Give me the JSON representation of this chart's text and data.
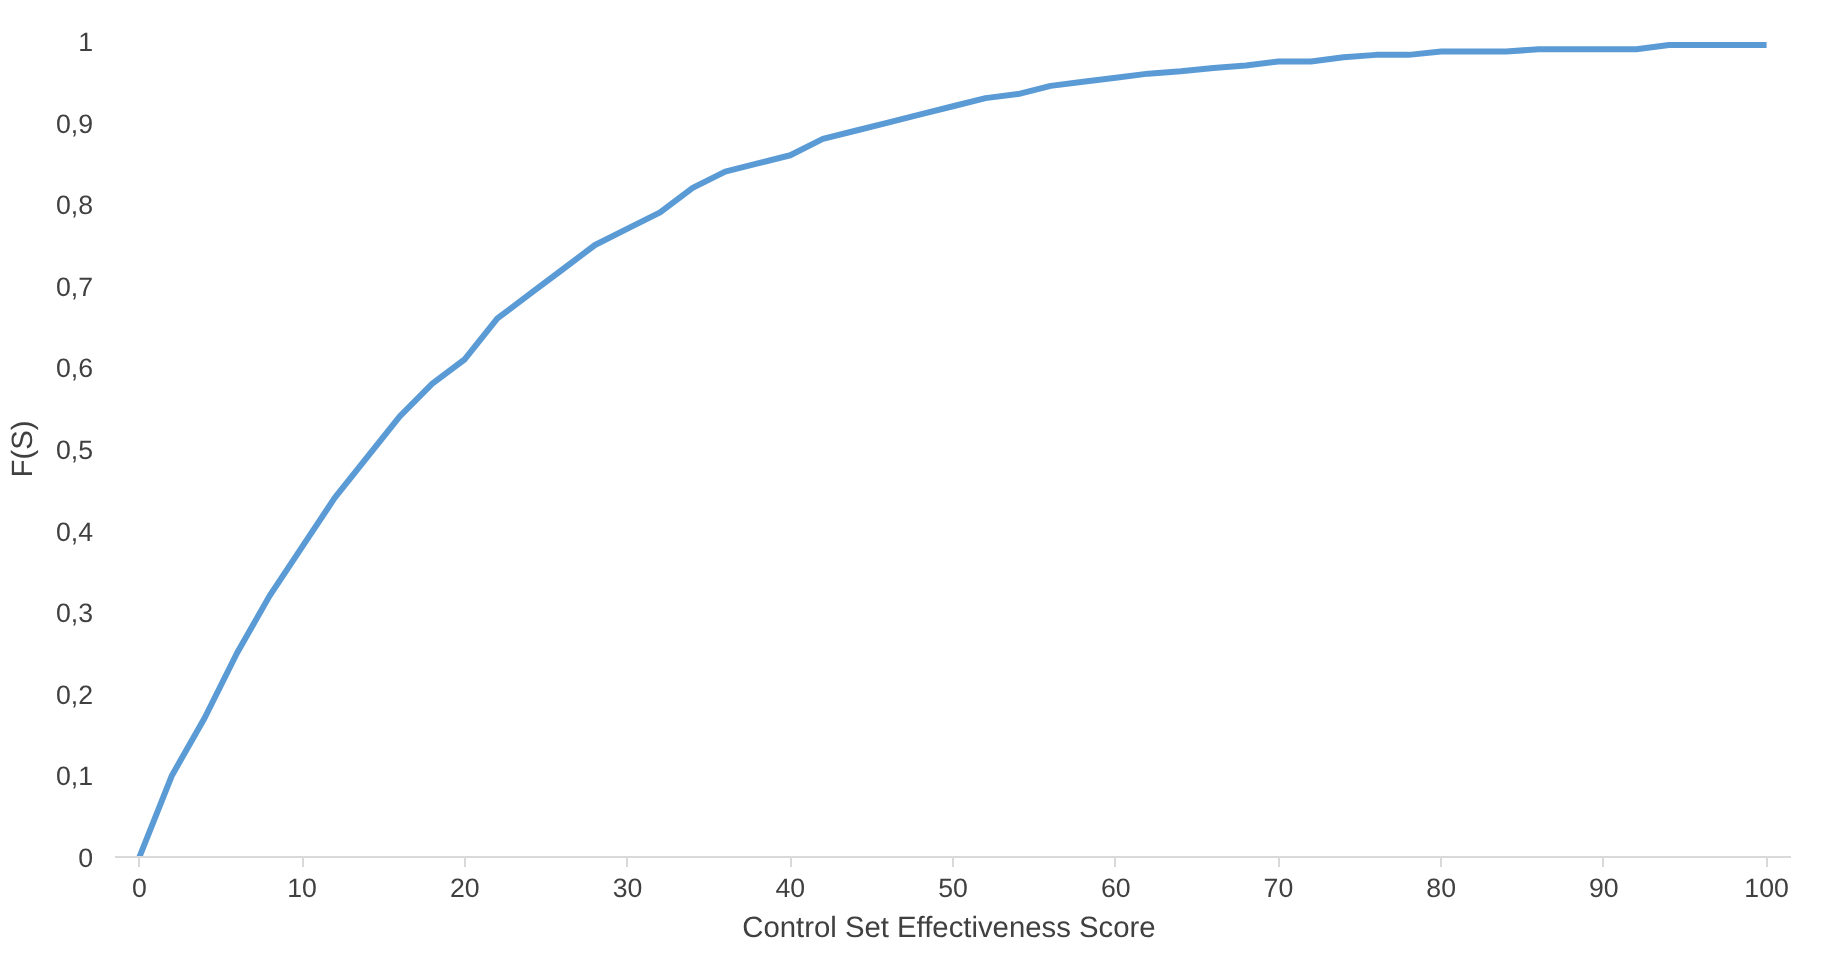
{
  "chart_data": {
    "type": "line",
    "xlabel": "Control  Set Effectiveness Score",
    "ylabel": "F(S)",
    "x": [
      0,
      2,
      4,
      6,
      8,
      10,
      12,
      14,
      16,
      18,
      20,
      22,
      24,
      26,
      28,
      30,
      32,
      34,
      36,
      38,
      40,
      42,
      44,
      46,
      48,
      50,
      52,
      54,
      56,
      58,
      60,
      62,
      64,
      66,
      68,
      70,
      72,
      74,
      76,
      78,
      80,
      82,
      84,
      86,
      88,
      90,
      92,
      94,
      96,
      98,
      100
    ],
    "series": [
      {
        "color": "#5b9bd5",
        "values": [
          0,
          0.1,
          0.17,
          0.25,
          0.32,
          0.38,
          0.44,
          0.49,
          0.54,
          0.58,
          0.61,
          0.66,
          0.69,
          0.72,
          0.75,
          0.77,
          0.79,
          0.82,
          0.84,
          0.85,
          0.86,
          0.88,
          0.89,
          0.9,
          0.91,
          0.92,
          0.93,
          0.935,
          0.945,
          0.95,
          0.955,
          0.96,
          0.963,
          0.967,
          0.97,
          0.975,
          0.975,
          0.98,
          0.983,
          0.983,
          0.987,
          0.987,
          0.987,
          0.99,
          0.99,
          0.99,
          0.99,
          0.995,
          0.995,
          0.995,
          0.995
        ]
      }
    ],
    "xlim": [
      -1.5,
      101.5
    ],
    "ylim": [
      0,
      1
    ],
    "xticks": [
      0,
      10,
      20,
      30,
      40,
      50,
      60,
      70,
      80,
      90,
      100
    ],
    "yticks": [
      0,
      {
        "value": 0.1,
        "label": "0,1"
      },
      {
        "value": 0.2,
        "label": "0,2"
      },
      {
        "value": 0.3,
        "label": "0,3"
      },
      {
        "value": 0.4,
        "label": "0,4"
      },
      {
        "value": 0.5,
        "label": "0,5"
      },
      {
        "value": 0.6,
        "label": "0,6"
      },
      {
        "value": 0.7,
        "label": "0,7"
      },
      {
        "value": 0.8,
        "label": "0,8"
      },
      {
        "value": 0.9,
        "label": "0,9"
      },
      1
    ],
    "grid": false,
    "marker": "none",
    "line_style": "solid"
  }
}
